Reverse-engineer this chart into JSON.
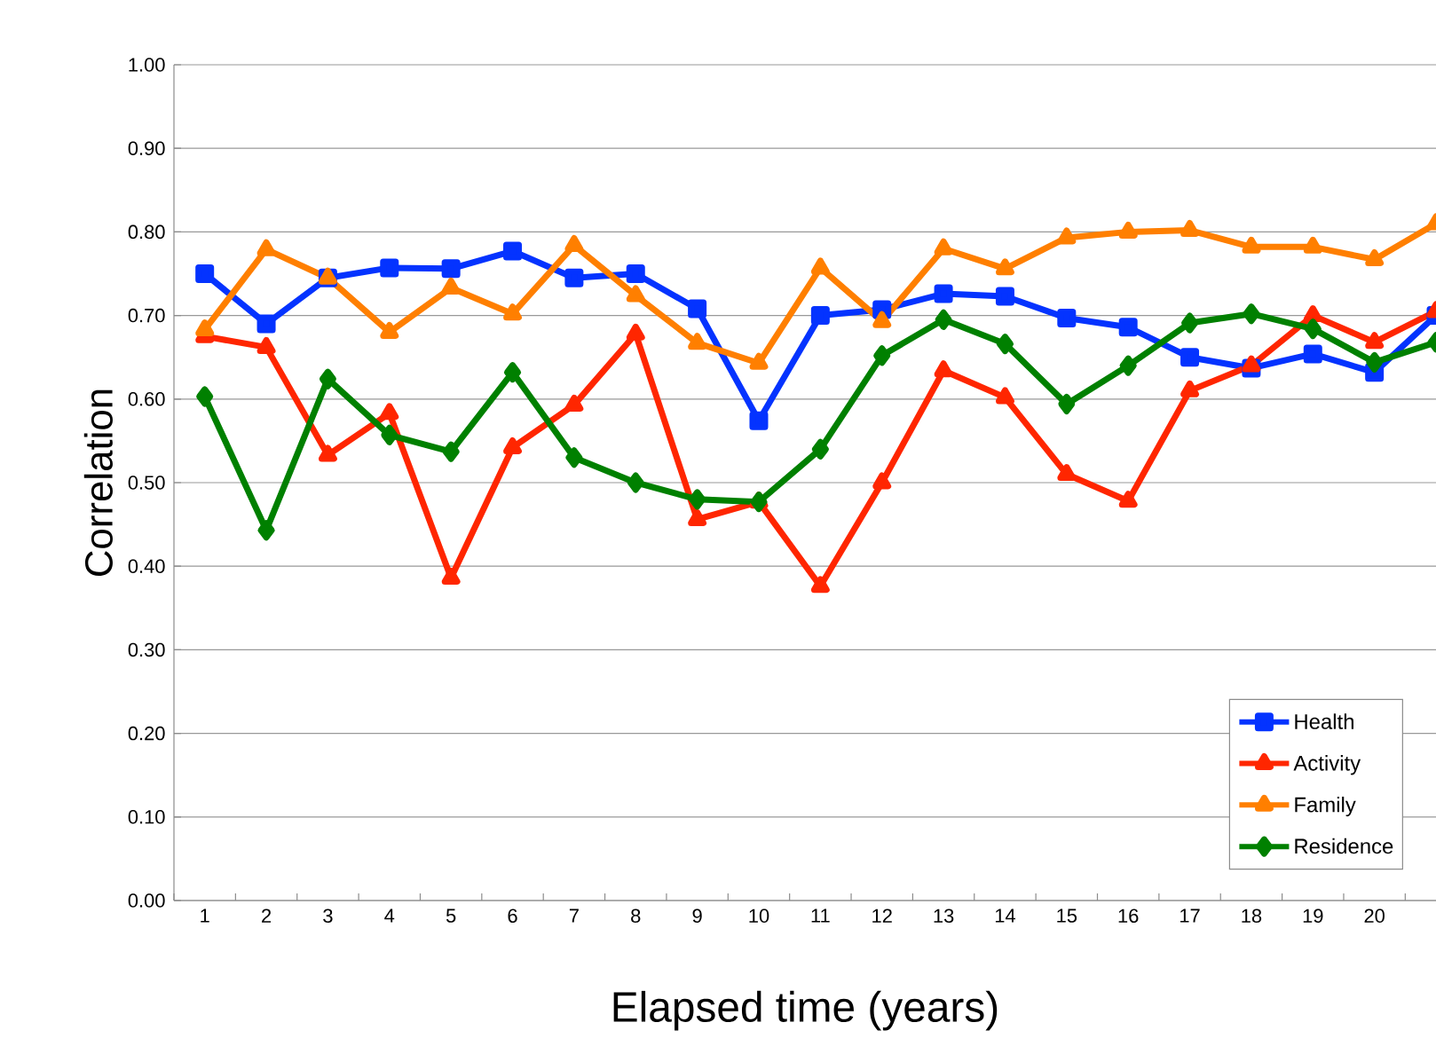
{
  "chart_data": {
    "type": "line",
    "xlabel": "Elapsed time (years)",
    "ylabel": "Correlation",
    "categories": [
      "1",
      "2",
      "3",
      "4",
      "5",
      "6",
      "7",
      "8",
      "9",
      "10",
      "11",
      "12",
      "13",
      "14",
      "15",
      "16",
      "17",
      "18",
      "19",
      "20",
      null
    ],
    "ylim": [
      0,
      1
    ],
    "yticks": [
      {
        "value": 0,
        "label": "0.00"
      },
      {
        "value": 0.1,
        "label": "0.10"
      },
      {
        "value": 0.2,
        "label": "0.20"
      },
      {
        "value": 0.3,
        "label": "0.30"
      },
      {
        "value": 0.4,
        "label": "0.40"
      },
      {
        "value": 0.5,
        "label": "0.50"
      },
      {
        "value": 0.6,
        "label": "0.60"
      },
      {
        "value": 0.7,
        "label": "0.70"
      },
      {
        "value": 0.8,
        "label": "0.80"
      },
      {
        "value": 0.9,
        "label": "0.90"
      },
      {
        "value": 1,
        "label": "1.00"
      }
    ],
    "grid": "y",
    "legend": "bottom right",
    "line_style": "solid",
    "series": [
      {
        "name": "Health",
        "color": "#0433ff",
        "marker": "square",
        "values": [
          0.75,
          0.69,
          0.745,
          0.757,
          0.756,
          0.777,
          0.745,
          0.75,
          0.708,
          0.574,
          0.7,
          0.707,
          0.726,
          0.723,
          0.697,
          0.686,
          0.65,
          0.637,
          0.654,
          0.632,
          0.7
        ]
      },
      {
        "name": "Activity",
        "color": "#ff2600",
        "marker": "triangle",
        "values": [
          0.675,
          0.662,
          0.533,
          0.583,
          0.386,
          0.542,
          0.593,
          0.678,
          0.456,
          0.477,
          0.376,
          0.5,
          0.634,
          0.602,
          0.51,
          0.478,
          0.61,
          0.64,
          0.7,
          0.668,
          0.705
        ]
      },
      {
        "name": "Family",
        "color": "#ff7f00",
        "marker": "triangle",
        "values": [
          0.683,
          0.779,
          0.745,
          0.68,
          0.733,
          0.702,
          0.784,
          0.724,
          0.667,
          0.643,
          0.757,
          0.693,
          0.78,
          0.756,
          0.793,
          0.8,
          0.802,
          0.782,
          0.782,
          0.767,
          0.81
        ]
      },
      {
        "name": "Residence",
        "color": "#008000",
        "marker": "diamond",
        "values": [
          0.603,
          0.443,
          0.624,
          0.557,
          0.537,
          0.632,
          0.53,
          0.5,
          0.48,
          0.477,
          0.54,
          0.652,
          0.695,
          0.666,
          0.594,
          0.64,
          0.691,
          0.702,
          0.684,
          0.644,
          0.668
        ]
      }
    ]
  }
}
